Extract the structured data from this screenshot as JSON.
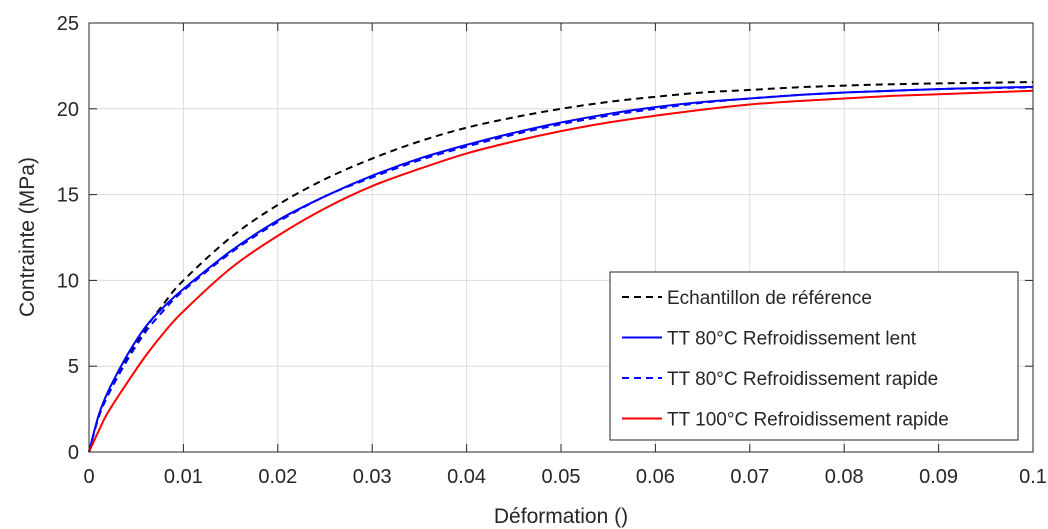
{
  "chart_data": {
    "type": "line",
    "title": "",
    "xlabel": "Déformation ()",
    "ylabel": "Contrainte (MPa)",
    "xlim": [
      0,
      0.1
    ],
    "ylim": [
      0,
      25
    ],
    "xticks": [
      "0",
      "0.01",
      "0.02",
      "0.03",
      "0.04",
      "0.05",
      "0.06",
      "0.07",
      "0.08",
      "0.09",
      "0.1"
    ],
    "yticks": [
      "0",
      "5",
      "10",
      "15",
      "20",
      "25"
    ],
    "grid": true,
    "legend_position": "bottom-right",
    "series": [
      {
        "name": "Echantillon de référence",
        "color": "#000000",
        "dash": "dashed",
        "x": [
          0,
          0.001,
          0.002,
          0.004,
          0.006,
          0.008,
          0.01,
          0.015,
          0.02,
          0.025,
          0.03,
          0.035,
          0.04,
          0.045,
          0.05,
          0.055,
          0.06,
          0.065,
          0.07,
          0.075,
          0.08,
          0.085,
          0.09,
          0.095,
          0.1
        ],
        "y": [
          0,
          2.0,
          3.3,
          5.4,
          7.2,
          8.7,
          10.0,
          12.5,
          14.4,
          15.9,
          17.1,
          18.1,
          18.9,
          19.5,
          20.0,
          20.4,
          20.7,
          20.95,
          21.1,
          21.25,
          21.35,
          21.43,
          21.48,
          21.52,
          21.56
        ]
      },
      {
        "name": "TT 80°C Refroidissement lent",
        "color": "#0000ff",
        "dash": "solid",
        "x": [
          0,
          0.001,
          0.002,
          0.004,
          0.006,
          0.008,
          0.01,
          0.015,
          0.02,
          0.025,
          0.03,
          0.035,
          0.04,
          0.045,
          0.05,
          0.055,
          0.06,
          0.065,
          0.07,
          0.075,
          0.08,
          0.085,
          0.09,
          0.095,
          0.1
        ],
        "y": [
          0,
          2.1,
          3.5,
          5.6,
          7.3,
          8.5,
          9.5,
          11.7,
          13.5,
          14.9,
          16.1,
          17.1,
          17.9,
          18.6,
          19.2,
          19.7,
          20.1,
          20.4,
          20.6,
          20.8,
          20.95,
          21.05,
          21.15,
          21.22,
          21.28
        ]
      },
      {
        "name": "TT 80°C Refroidissement rapide",
        "color": "#0000ff",
        "dash": "dashed",
        "x": [
          0,
          0.001,
          0.002,
          0.004,
          0.006,
          0.008,
          0.01,
          0.015,
          0.02,
          0.025,
          0.03,
          0.035,
          0.04,
          0.045,
          0.05,
          0.055,
          0.06,
          0.065,
          0.07,
          0.075,
          0.08,
          0.085,
          0.09,
          0.095,
          0.1
        ],
        "y": [
          0,
          2.0,
          3.3,
          5.3,
          7.0,
          8.3,
          9.4,
          11.6,
          13.4,
          14.9,
          16.0,
          17.0,
          17.8,
          18.5,
          19.1,
          19.6,
          20.0,
          20.35,
          20.6,
          20.8,
          20.95,
          21.05,
          21.15,
          21.2,
          21.25
        ]
      },
      {
        "name": "TT 100°C Refroidissement rapide",
        "color": "#ff0000",
        "dash": "solid",
        "x": [
          0,
          0.001,
          0.002,
          0.004,
          0.006,
          0.008,
          0.01,
          0.015,
          0.02,
          0.025,
          0.03,
          0.035,
          0.04,
          0.045,
          0.05,
          0.055,
          0.06,
          0.065,
          0.07,
          0.075,
          0.08,
          0.085,
          0.09,
          0.095,
          0.1
        ],
        "y": [
          0,
          1.2,
          2.3,
          4.0,
          5.6,
          7.0,
          8.2,
          10.7,
          12.6,
          14.2,
          15.5,
          16.5,
          17.4,
          18.1,
          18.7,
          19.2,
          19.6,
          19.95,
          20.25,
          20.45,
          20.6,
          20.75,
          20.85,
          20.95,
          21.05
        ]
      }
    ]
  }
}
